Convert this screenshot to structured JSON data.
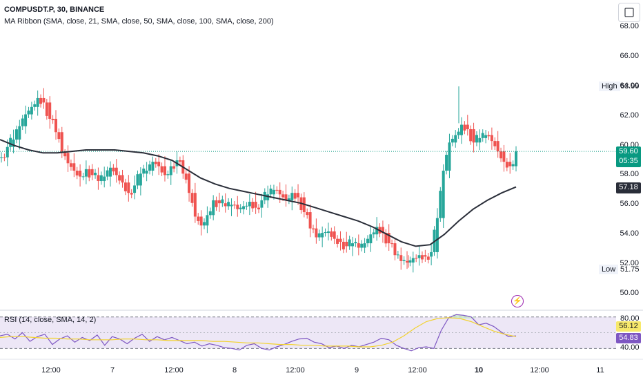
{
  "header": {
    "symbol_title": "COMPUSDT.P, 30, BINANCE",
    "ma_legend": "MA Ribbon (SMA, close, 21, SMA, close, 50, SMA, close, 100, SMA, close, 200)"
  },
  "rsi_panel": {
    "legend": "RSI (14, close, SMA, 14, 2)",
    "value_rsi": "56.12",
    "value_sma": "54.83",
    "band_upper": "80.00",
    "band_lower": "40.00"
  },
  "price_axis": {
    "ticks": [
      "68.00",
      "66.00",
      "64.00",
      "62.00",
      "60.00",
      "58.00",
      "56.00",
      "54.00",
      "52.00",
      "50.00"
    ],
    "high_label": "High",
    "high_value": "63.99",
    "low_label": "Low",
    "low_value": "51.75",
    "last_price": "59.60",
    "countdown": "05:35",
    "ma_value": "57.18"
  },
  "time_axis": {
    "ticks": [
      "12:00",
      "7",
      "12:00",
      "8",
      "12:00",
      "9",
      "12:00",
      "10",
      "12:00",
      "11"
    ]
  },
  "colors": {
    "up": "#26a69a",
    "down": "#ef5350",
    "ma": "#2a2e39",
    "rsi_line": "#7e57c2",
    "rsi_sma": "#f2d22e",
    "rsi_band": "#ede7f6",
    "last_price_bg": "#089981"
  },
  "icons": {
    "top_right_button": "maximize-icon",
    "alert": "lightning-icon"
  },
  "chart_data": [
    {
      "type": "candlestick",
      "title": "COMPUSDT.P, 30, BINANCE",
      "ylim": [
        49.5,
        69.0
      ],
      "x_labels": [
        "12:00",
        "7",
        "12:00",
        "8",
        "12:00",
        "9",
        "12:00",
        "10",
        "12:00",
        "11"
      ],
      "close_path": [
        59.2,
        59.9,
        60.4,
        61.3,
        62.1,
        62.6,
        63.2,
        62.9,
        61.8,
        60.9,
        59.5,
        58.8,
        58.3,
        57.9,
        58.4,
        58.0,
        57.6,
        57.9,
        58.5,
        58.0,
        57.5,
        56.8,
        57.3,
        58.1,
        58.3,
        58.9,
        58.6,
        58.0,
        58.6,
        59.0,
        58.1,
        56.8,
        55.2,
        54.6,
        55.3,
        56.3,
        56.1,
        55.9,
        56.0,
        55.7,
        55.9,
        56.2,
        55.8,
        56.3,
        56.7,
        57.0,
        56.7,
        56.3,
        56.8,
        56.5,
        55.5,
        54.4,
        53.8,
        54.1,
        54.2,
        53.7,
        53.5,
        53.2,
        53.4,
        53.1,
        53.4,
        54.0,
        54.5,
        54.1,
        53.4,
        52.6,
        52.2,
        52.1,
        52.4,
        52.6,
        52.5,
        52.8,
        55.1,
        58.3,
        60.2,
        60.7,
        61.4,
        61.1,
        60.2,
        60.5,
        60.7,
        60.3,
        59.6,
        58.9,
        58.6,
        59.6
      ],
      "high": 63.99,
      "low": 51.75,
      "last": 59.6
    },
    {
      "type": "line",
      "series": [
        {
          "name": "MA Ribbon",
          "values": [
            60.4,
            60.0,
            59.7,
            59.5,
            59.5,
            59.6,
            59.7,
            59.7,
            59.7,
            59.6,
            59.5,
            59.3,
            59.0,
            58.4,
            57.8,
            57.4,
            57.1,
            56.9,
            56.7,
            56.5,
            56.3,
            56.1,
            55.8,
            55.5,
            55.2,
            54.9,
            54.5,
            54.0,
            53.5,
            53.2,
            53.3,
            54.0,
            54.9,
            55.7,
            56.3,
            56.8,
            57.2
          ]
        }
      ]
    },
    {
      "type": "line",
      "ylim": [
        28,
        85
      ],
      "series": [
        {
          "name": "RSI (14, close, SMA, 14, 2)",
          "values": [
            56,
            58,
            52,
            60,
            49,
            55,
            58,
            45,
            52,
            56,
            48,
            54,
            50,
            57,
            44,
            55,
            52,
            46,
            53,
            58,
            49,
            55,
            51,
            54,
            50,
            46,
            48,
            43,
            46,
            44,
            41,
            40,
            38,
            44,
            46,
            40,
            38,
            42,
            45,
            49,
            52,
            53,
            48,
            46,
            41,
            43,
            40,
            44,
            42,
            45,
            48,
            53,
            51,
            44,
            40,
            37,
            41,
            42,
            40,
            63,
            79,
            83,
            82,
            80,
            70,
            72,
            68,
            61,
            55,
            56
          ]
        },
        {
          "name": "SMA",
          "values": [
            54,
            55,
            55,
            54,
            53,
            53,
            52,
            52,
            51,
            51,
            51,
            52,
            52,
            51,
            51,
            50,
            50,
            50,
            50,
            49,
            49,
            48,
            47,
            47,
            46,
            45,
            45,
            44,
            44,
            43,
            43,
            43,
            42,
            42,
            44,
            48,
            56,
            66,
            74,
            78,
            79,
            78,
            74,
            68,
            62,
            58,
            55
          ]
        }
      ]
    }
  ]
}
